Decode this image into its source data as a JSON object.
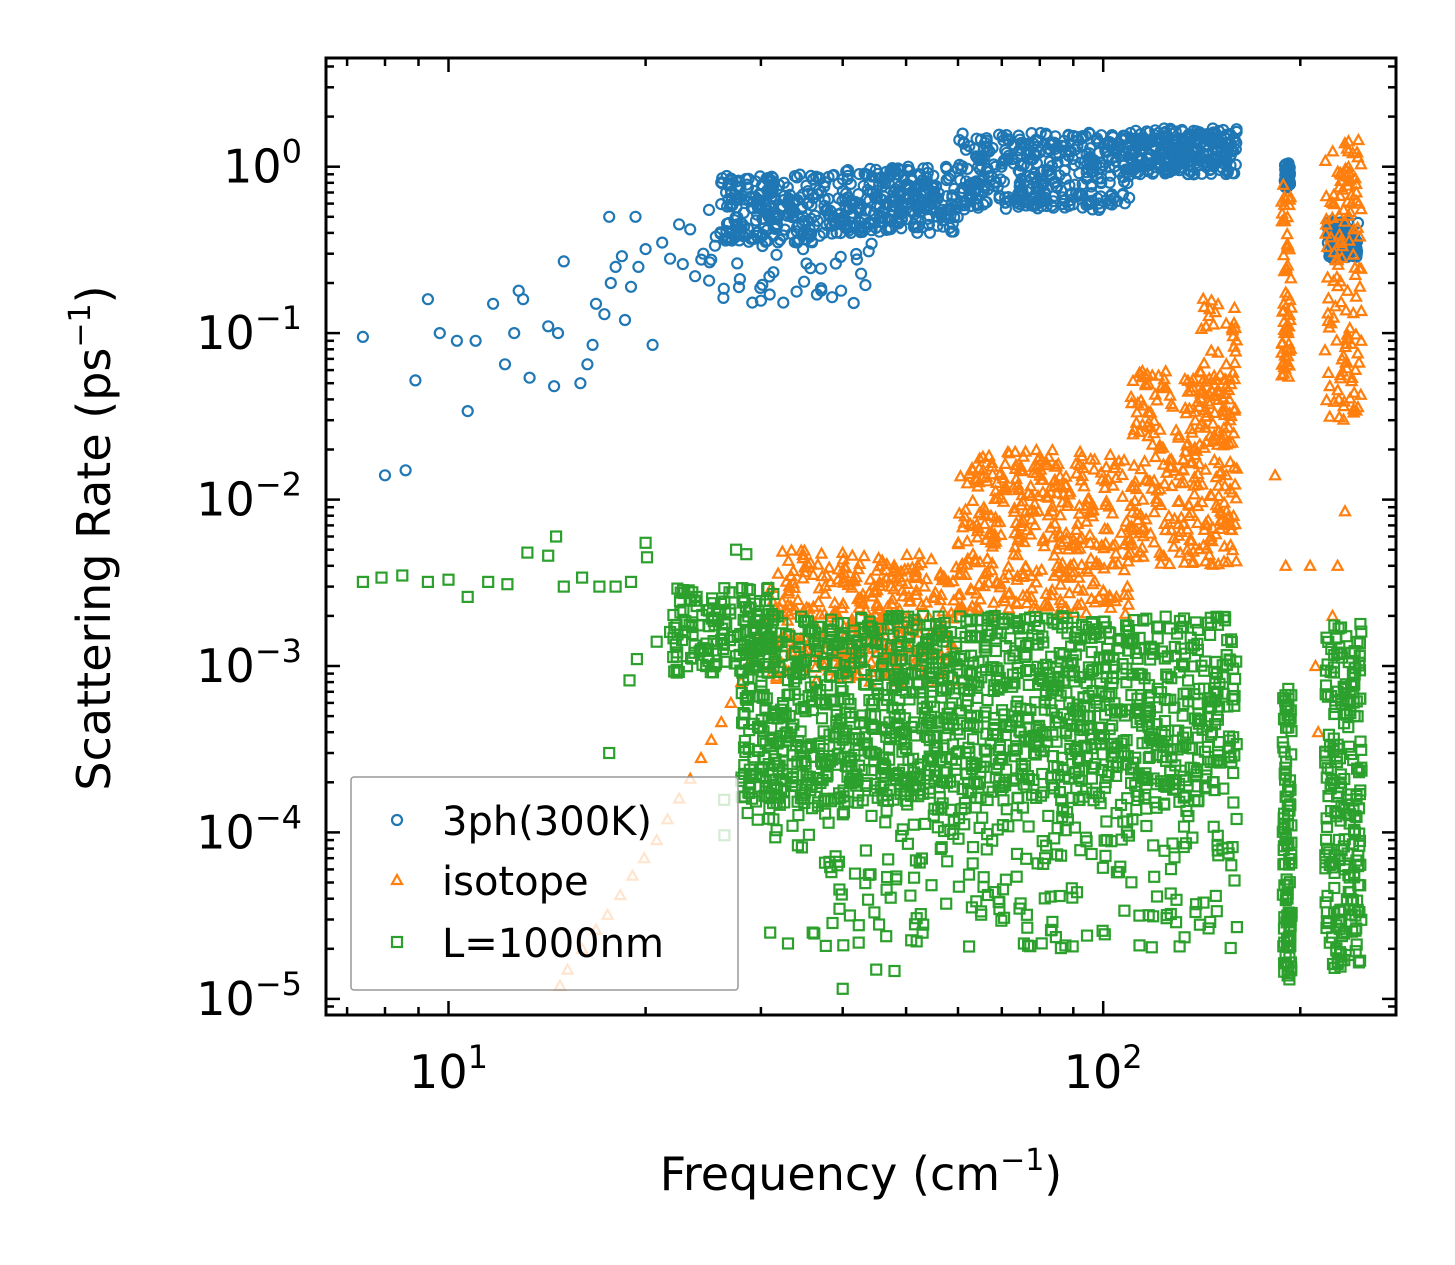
{
  "chart_data": {
    "type": "scatter",
    "x_scale": "log",
    "y_scale": "log",
    "xlim": [
      6.5,
      280
    ],
    "ylim": [
      8e-06,
      4.5
    ],
    "xlabel": "Frequency (cm",
    "xlabel_sup": "−1",
    "xlabel_close": ")",
    "ylabel": "Scattering Rate (ps",
    "ylabel_sup": "−1",
    "ylabel_close": ")",
    "x_ticks": [
      {
        "value": 10,
        "base": "10",
        "exp": "1"
      },
      {
        "value": 100,
        "base": "10",
        "exp": "2"
      }
    ],
    "y_ticks": [
      {
        "value": 1,
        "base": "10",
        "exp": "0"
      },
      {
        "value": 0.1,
        "base": "10",
        "exp": "−1"
      },
      {
        "value": 0.01,
        "base": "10",
        "exp": "−2"
      },
      {
        "value": 0.001,
        "base": "10",
        "exp": "−3"
      },
      {
        "value": 0.0001,
        "base": "10",
        "exp": "−4"
      },
      {
        "value": 1e-05,
        "base": "10",
        "exp": "−5"
      }
    ],
    "legend_position": "bottom-left",
    "series": [
      {
        "name": "3ph(300K)",
        "marker": "circle",
        "color": "#1f77b4",
        "points": [
          [
            7.4,
            0.095
          ],
          [
            8.0,
            0.014
          ],
          [
            8.6,
            0.015
          ],
          [
            8.9,
            0.052
          ],
          [
            9.3,
            0.16
          ],
          [
            9.7,
            0.1
          ],
          [
            10.3,
            0.09
          ],
          [
            10.7,
            0.034
          ],
          [
            11.0,
            0.09
          ],
          [
            11.7,
            0.15
          ],
          [
            12.2,
            0.065
          ],
          [
            12.6,
            0.1
          ],
          [
            12.8,
            0.18
          ],
          [
            13.0,
            0.16
          ],
          [
            13.3,
            0.054
          ],
          [
            14.2,
            0.11
          ],
          [
            14.5,
            0.048
          ],
          [
            14.7,
            0.1
          ],
          [
            15.0,
            0.27
          ],
          [
            15.9,
            0.05
          ],
          [
            16.3,
            0.065
          ],
          [
            16.6,
            0.085
          ],
          [
            16.8,
            0.15
          ],
          [
            17.3,
            0.13
          ],
          [
            17.6,
            0.5
          ],
          [
            17.7,
            0.2
          ],
          [
            18.0,
            0.25
          ],
          [
            18.4,
            0.29
          ],
          [
            18.6,
            0.12
          ],
          [
            19.0,
            0.19
          ],
          [
            19.3,
            0.5
          ],
          [
            19.5,
            0.25
          ],
          [
            20.0,
            0.32
          ],
          [
            20.5,
            0.085
          ],
          [
            21.2,
            0.35
          ],
          [
            21.8,
            0.28
          ],
          [
            22.5,
            0.45
          ],
          [
            22.8,
            0.26
          ],
          [
            23.4,
            0.42
          ],
          [
            23.8,
            0.22
          ],
          [
            24.5,
            0.3
          ],
          [
            25.0,
            0.55
          ],
          [
            25.6,
            0.38
          ],
          [
            26.6,
            0.88
          ],
          [
            27.6,
            0.45
          ]
        ],
        "bands": [
          {
            "x": [
              26,
              40
            ],
            "y": [
              0.35,
              0.9
            ],
            "n": 260,
            "seed": 11
          },
          {
            "x": [
              40,
              60
            ],
            "y": [
              0.4,
              1.0
            ],
            "n": 260,
            "seed": 12
          },
          {
            "x": [
              60,
              110
            ],
            "y": [
              0.55,
              1.6
            ],
            "n": 380,
            "seed": 13
          },
          {
            "x": [
              110,
              160
            ],
            "y": [
              0.9,
              1.7
            ],
            "n": 260,
            "seed": 14
          },
          {
            "x": [
              24,
              45
            ],
            "y": [
              0.15,
              0.35
            ],
            "n": 40,
            "seed": 15
          },
          {
            "x": [
              189,
              193
            ],
            "y": [
              0.75,
              1.05
            ],
            "n": 50,
            "seed": 16
          },
          {
            "x": [
              220,
              245
            ],
            "y": [
              0.28,
              0.48
            ],
            "n": 110,
            "seed": 17
          }
        ]
      },
      {
        "name": "isotope",
        "marker": "triangle",
        "color": "#ff7f0e",
        "points": [
          [
            14.8,
            1.2e-05
          ],
          [
            15.2,
            1.5e-05
          ],
          [
            16.0,
            2e-05
          ],
          [
            16.8,
            2.6e-05
          ],
          [
            17.5,
            3.2e-05
          ],
          [
            18.3,
            4.2e-05
          ],
          [
            19.1,
            5.5e-05
          ],
          [
            19.9,
            7e-05
          ],
          [
            20.8,
            9e-05
          ],
          [
            21.6,
            0.00012
          ],
          [
            22.5,
            0.00016
          ],
          [
            23.4,
            0.00021
          ],
          [
            24.3,
            0.00028
          ],
          [
            25.2,
            0.00036
          ],
          [
            26.1,
            0.00046
          ],
          [
            27.0,
            0.0006
          ],
          [
            28.0,
            0.0008
          ],
          [
            29.0,
            0.0011
          ],
          [
            29.8,
            0.0014
          ],
          [
            30.6,
            0.0018
          ],
          [
            31.5,
            0.0022
          ],
          [
            183,
            0.014
          ],
          [
            190,
            0.004
          ],
          [
            207,
            0.004
          ],
          [
            211,
            0.001
          ],
          [
            213,
            0.0004
          ],
          [
            228,
            0.004
          ],
          [
            234,
            0.0085
          ],
          [
            224,
            0.002
          ]
        ],
        "bands": [
          {
            "x": [
              31,
              60
            ],
            "y": [
              0.0008,
              0.005
            ],
            "n": 340,
            "seed": 21
          },
          {
            "x": [
              60,
              110
            ],
            "y": [
              0.002,
              0.02
            ],
            "n": 380,
            "seed": 22
          },
          {
            "x": [
              110,
              160
            ],
            "y": [
              0.004,
              0.06
            ],
            "n": 280,
            "seed": 23
          },
          {
            "x": [
              140,
              160
            ],
            "y": [
              0.02,
              0.17
            ],
            "n": 60,
            "seed": 24
          },
          {
            "x": [
              187,
              194
            ],
            "y": [
              0.05,
              0.8
            ],
            "n": 60,
            "seed": 25
          },
          {
            "x": [
              218,
              248
            ],
            "y": [
              0.03,
              1.5
            ],
            "n": 130,
            "seed": 26
          }
        ]
      },
      {
        "name": "L=1000nm",
        "marker": "square",
        "color": "#2ca02c",
        "points": [
          [
            7.4,
            0.0032
          ],
          [
            7.9,
            0.0034
          ],
          [
            8.5,
            0.0035
          ],
          [
            9.3,
            0.0032
          ],
          [
            10.0,
            0.0033
          ],
          [
            10.7,
            0.0026
          ],
          [
            11.5,
            0.0032
          ],
          [
            12.3,
            0.0031
          ],
          [
            13.2,
            0.0048
          ],
          [
            14.2,
            0.0046
          ],
          [
            14.6,
            0.006
          ],
          [
            15.0,
            0.003
          ],
          [
            16.0,
            0.0034
          ],
          [
            17.0,
            0.003
          ],
          [
            18.0,
            0.003
          ],
          [
            19.0,
            0.0032
          ],
          [
            20.0,
            0.0055
          ],
          [
            20.1,
            0.0045
          ],
          [
            18.9,
            0.00082
          ],
          [
            19.4,
            0.0011
          ],
          [
            20.8,
            0.0014
          ],
          [
            21.8,
            0.0016
          ],
          [
            17.6,
            0.0003
          ],
          [
            27.5,
            0.005
          ],
          [
            28.5,
            0.0047
          ],
          [
            31,
            2.5e-05
          ],
          [
            33,
            2.15e-05
          ],
          [
            36,
            2.5e-05
          ],
          [
            40,
            1.15e-05
          ],
          [
            45,
            1.5e-05
          ],
          [
            48,
            1.47e-05
          ]
        ],
        "bands": [
          {
            "x": [
              22,
              32
            ],
            "y": [
              0.0009,
              0.003
            ],
            "n": 150,
            "seed": 31
          },
          {
            "x": [
              28,
              160
            ],
            "y": [
              0.00015,
              0.002
            ],
            "n": 1400,
            "seed": 32
          },
          {
            "x": [
              35,
              160
            ],
            "y": [
              2e-05,
              0.00015
            ],
            "n": 220,
            "seed": 33
          },
          {
            "x": [
              26,
              60
            ],
            "y": [
              8e-05,
              0.0003
            ],
            "n": 60,
            "seed": 34
          },
          {
            "x": [
              188,
              194
            ],
            "y": [
              1.3e-05,
              0.00075
            ],
            "n": 110,
            "seed": 35
          },
          {
            "x": [
              218,
              248
            ],
            "y": [
              1.5e-05,
              0.0018
            ],
            "n": 220,
            "seed": 36
          }
        ]
      }
    ]
  }
}
